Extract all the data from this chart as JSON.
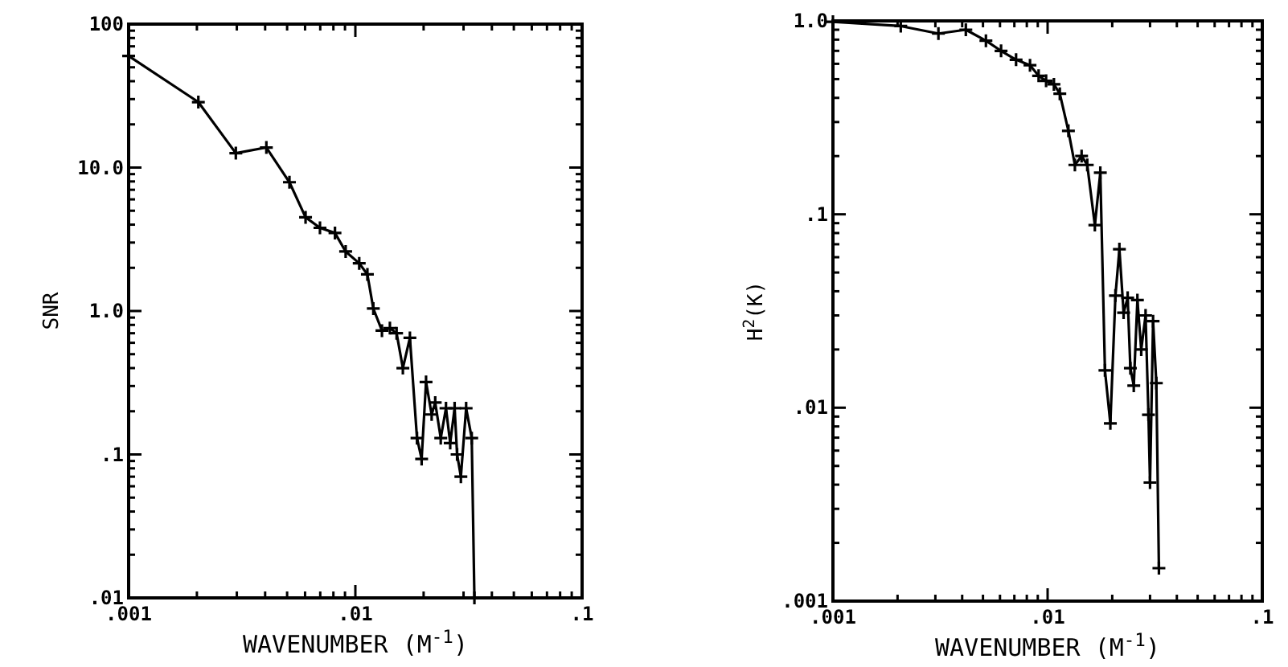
{
  "chart_data": [
    {
      "type": "line",
      "xlabel": "WAVENUMBER (M$^{-1}$)",
      "ylabel": "SNR",
      "log": "xy",
      "marker": "cross",
      "line_style": "solid",
      "grid": false,
      "xlim": [
        0.001,
        0.1
      ],
      "ylim": [
        0.01,
        100
      ],
      "xticks": [
        {
          "value": 0.001,
          "label": ".001"
        },
        {
          "value": 0.002,
          "label": null
        },
        {
          "value": 0.003,
          "label": null
        },
        {
          "value": 0.004,
          "label": null
        },
        {
          "value": 0.005,
          "label": null
        },
        {
          "value": 0.006,
          "label": null
        },
        {
          "value": 0.007,
          "label": null
        },
        {
          "value": 0.008,
          "label": null
        },
        {
          "value": 0.009,
          "label": null
        },
        {
          "value": 0.01,
          "label": ".01"
        },
        {
          "value": 0.02,
          "label": null
        },
        {
          "value": 0.03,
          "label": null
        },
        {
          "value": 0.04,
          "label": null
        },
        {
          "value": 0.05,
          "label": null
        },
        {
          "value": 0.06,
          "label": null
        },
        {
          "value": 0.07,
          "label": null
        },
        {
          "value": 0.08,
          "label": null
        },
        {
          "value": 0.09,
          "label": null
        },
        {
          "value": 0.1,
          "label": ".1"
        }
      ],
      "yticks": [
        {
          "value": 0.01,
          "label": ".01"
        },
        {
          "value": 0.02,
          "label": null
        },
        {
          "value": 0.03,
          "label": null
        },
        {
          "value": 0.04,
          "label": null
        },
        {
          "value": 0.05,
          "label": null
        },
        {
          "value": 0.06,
          "label": null
        },
        {
          "value": 0.07,
          "label": null
        },
        {
          "value": 0.08,
          "label": null
        },
        {
          "value": 0.09,
          "label": null
        },
        {
          "value": 0.1,
          "label": ".1"
        },
        {
          "value": 0.2,
          "label": null
        },
        {
          "value": 0.3,
          "label": null
        },
        {
          "value": 0.4,
          "label": null
        },
        {
          "value": 0.5,
          "label": null
        },
        {
          "value": 0.6,
          "label": null
        },
        {
          "value": 0.7,
          "label": null
        },
        {
          "value": 0.8,
          "label": null
        },
        {
          "value": 0.9,
          "label": null
        },
        {
          "value": 1,
          "label": "1.0"
        },
        {
          "value": 2,
          "label": null
        },
        {
          "value": 3,
          "label": null
        },
        {
          "value": 4,
          "label": null
        },
        {
          "value": 5,
          "label": null
        },
        {
          "value": 6,
          "label": null
        },
        {
          "value": 7,
          "label": null
        },
        {
          "value": 8,
          "label": null
        },
        {
          "value": 9,
          "label": null
        },
        {
          "value": 10,
          "label": "10.0"
        },
        {
          "value": 20,
          "label": null
        },
        {
          "value": 30,
          "label": null
        },
        {
          "value": 40,
          "label": null
        },
        {
          "value": 50,
          "label": null
        },
        {
          "value": 60,
          "label": null
        },
        {
          "value": 70,
          "label": null
        },
        {
          "value": 80,
          "label": null
        },
        {
          "value": 90,
          "label": null
        },
        {
          "value": 100,
          "label": "100"
        }
      ],
      "series": [
        {
          "color": "#000000",
          "x": [
            0.001,
            0.00203,
            0.00297,
            0.00405,
            0.00512,
            0.00603,
            0.00698,
            0.00813,
            0.00906,
            0.0104,
            0.0113,
            0.012,
            0.0131,
            0.0142,
            0.0152,
            0.0162,
            0.0174,
            0.0187,
            0.0196,
            0.0205,
            0.0217,
            0.0225,
            0.0238,
            0.0251,
            0.0262,
            0.0274,
            0.0281,
            0.0292,
            0.0308,
            0.0326,
            0.0335
          ],
          "values": [
            60,
            28.6,
            12.6,
            13.8,
            7.9,
            4.5,
            3.8,
            3.5,
            2.6,
            2.15,
            1.8,
            1.04,
            0.73,
            0.76,
            0.7,
            0.4,
            0.65,
            0.13,
            0.093,
            0.32,
            0.19,
            0.23,
            0.13,
            0.21,
            0.12,
            0.21,
            0.1,
            0.07,
            0.21,
            0.13,
            0.01
          ]
        }
      ]
    },
    {
      "type": "line",
      "xlabel": "WAVENUMBER (M$^{-1}$)",
      "ylabel": "H$^{2}$(K)",
      "log": "xy",
      "marker": "cross",
      "line_style": "solid",
      "grid": false,
      "xlim": [
        0.001,
        0.1
      ],
      "ylim": [
        0.001,
        1
      ],
      "xticks": [
        {
          "value": 0.001,
          "label": ".001"
        },
        {
          "value": 0.002,
          "label": null
        },
        {
          "value": 0.003,
          "label": null
        },
        {
          "value": 0.004,
          "label": null
        },
        {
          "value": 0.005,
          "label": null
        },
        {
          "value": 0.006,
          "label": null
        },
        {
          "value": 0.007,
          "label": null
        },
        {
          "value": 0.008,
          "label": null
        },
        {
          "value": 0.009,
          "label": null
        },
        {
          "value": 0.01,
          "label": ".01"
        },
        {
          "value": 0.02,
          "label": null
        },
        {
          "value": 0.03,
          "label": null
        },
        {
          "value": 0.04,
          "label": null
        },
        {
          "value": 0.05,
          "label": null
        },
        {
          "value": 0.06,
          "label": null
        },
        {
          "value": 0.07,
          "label": null
        },
        {
          "value": 0.08,
          "label": null
        },
        {
          "value": 0.09,
          "label": null
        },
        {
          "value": 0.1,
          "label": ".1"
        }
      ],
      "yticks": [
        {
          "value": 0.001,
          "label": ".001"
        },
        {
          "value": 0.002,
          "label": null
        },
        {
          "value": 0.003,
          "label": null
        },
        {
          "value": 0.004,
          "label": null
        },
        {
          "value": 0.005,
          "label": null
        },
        {
          "value": 0.006,
          "label": null
        },
        {
          "value": 0.007,
          "label": null
        },
        {
          "value": 0.008,
          "label": null
        },
        {
          "value": 0.009,
          "label": null
        },
        {
          "value": 0.01,
          "label": ".01"
        },
        {
          "value": 0.02,
          "label": null
        },
        {
          "value": 0.03,
          "label": null
        },
        {
          "value": 0.04,
          "label": null
        },
        {
          "value": 0.05,
          "label": null
        },
        {
          "value": 0.06,
          "label": null
        },
        {
          "value": 0.07,
          "label": null
        },
        {
          "value": 0.08,
          "label": null
        },
        {
          "value": 0.09,
          "label": null
        },
        {
          "value": 0.1,
          "label": ".1"
        },
        {
          "value": 0.2,
          "label": null
        },
        {
          "value": 0.3,
          "label": null
        },
        {
          "value": 0.4,
          "label": null
        },
        {
          "value": 0.5,
          "label": null
        },
        {
          "value": 0.6,
          "label": null
        },
        {
          "value": 0.7,
          "label": null
        },
        {
          "value": 0.8,
          "label": null
        },
        {
          "value": 0.9,
          "label": null
        },
        {
          "value": 1,
          "label": "1.0"
        }
      ],
      "series": [
        {
          "color": "#000000",
          "x": [
            0.001,
            0.00207,
            0.0031,
            0.00416,
            0.00516,
            0.00607,
            0.00713,
            0.00828,
            0.00908,
            0.00984,
            0.0107,
            0.0114,
            0.0125,
            0.0134,
            0.0144,
            0.0153,
            0.0166,
            0.0176,
            0.0185,
            0.0196,
            0.0207,
            0.0216,
            0.0226,
            0.0236,
            0.0243,
            0.0252,
            0.0262,
            0.0273,
            0.0286,
            0.0295,
            0.03,
            0.031,
            0.0321,
            0.033
          ],
          "values": [
            0.99,
            0.94,
            0.86,
            0.9,
            0.79,
            0.7,
            0.63,
            0.59,
            0.52,
            0.49,
            0.47,
            0.42,
            0.27,
            0.18,
            0.2,
            0.18,
            0.088,
            0.164,
            0.0156,
            0.0083,
            0.038,
            0.066,
            0.031,
            0.037,
            0.016,
            0.013,
            0.036,
            0.02,
            0.03,
            0.0092,
            0.0041,
            0.028,
            0.0134,
            0.00148
          ]
        }
      ]
    }
  ]
}
